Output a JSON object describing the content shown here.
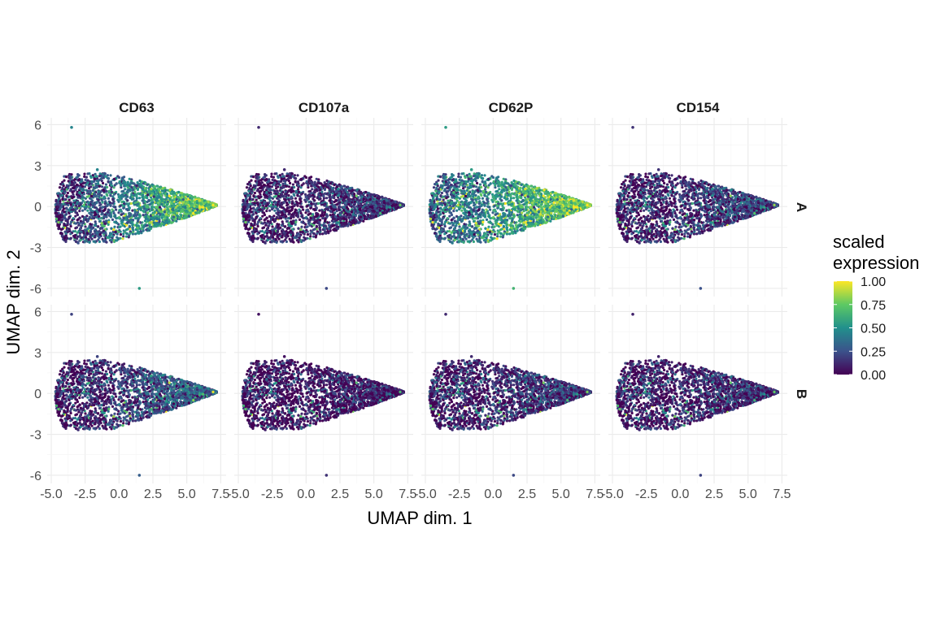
{
  "chart_data": {
    "type": "scatter",
    "title": "",
    "xlabel": "UMAP dim. 1",
    "ylabel": "UMAP dim. 2",
    "xlim": [
      -5.3,
      7.9
    ],
    "ylim": [
      -6.6,
      6.5
    ],
    "x_ticks": [
      -5.0,
      -2.5,
      0.0,
      2.5,
      5.0,
      7.5
    ],
    "x_tick_labels": [
      "-5.0",
      "-2.5",
      "0.0",
      "2.5",
      "5.0",
      "7.5"
    ],
    "y_ticks": [
      6,
      3,
      0,
      -3,
      -6
    ],
    "y_tick_labels": [
      "6",
      "3",
      "0",
      "-3",
      "-6"
    ],
    "grid": true,
    "facet_columns": [
      "CD63",
      "CD107a",
      "CD62P",
      "CD154"
    ],
    "facet_rows": [
      "A",
      "B"
    ],
    "color_scale": {
      "name": "viridis",
      "stops": [
        "#440154",
        "#3b528b",
        "#21908c",
        "#5dc963",
        "#fde725"
      ]
    },
    "legend": {
      "title_lines": [
        "scaled",
        "expression"
      ],
      "placement": "right",
      "ticks": [
        1.0,
        0.75,
        0.5,
        0.25,
        0.0
      ],
      "tick_labels": [
        "1.00",
        "0.75",
        "0.50",
        "0.25",
        "0.00"
      ]
    },
    "cluster": {
      "x_range": [
        -4.7,
        7.3
      ],
      "y_range": [
        -2.6,
        2.5
      ],
      "outliers": [
        {
          "x": -3.5,
          "y": 5.8
        },
        {
          "x": 1.5,
          "y": -6.0
        },
        {
          "x": -1.6,
          "y": 2.7
        }
      ]
    },
    "panels": [
      {
        "marker": "CD63",
        "group": "A",
        "mean_expression": 0.45,
        "gradient_right": 0.45
      },
      {
        "marker": "CD107a",
        "group": "A",
        "mean_expression": 0.12,
        "gradient_right": 0.05
      },
      {
        "marker": "CD62P",
        "group": "A",
        "mean_expression": 0.55,
        "gradient_right": 0.35
      },
      {
        "marker": "CD154",
        "group": "A",
        "mean_expression": 0.15,
        "gradient_right": 0.1
      },
      {
        "marker": "CD63",
        "group": "B",
        "mean_expression": 0.2,
        "gradient_right": 0.2
      },
      {
        "marker": "CD107a",
        "group": "B",
        "mean_expression": 0.05,
        "gradient_right": 0.03
      },
      {
        "marker": "CD62P",
        "group": "B",
        "mean_expression": 0.12,
        "gradient_right": 0.08
      },
      {
        "marker": "CD154",
        "group": "B",
        "mean_expression": 0.1,
        "gradient_right": 0.05
      }
    ]
  }
}
